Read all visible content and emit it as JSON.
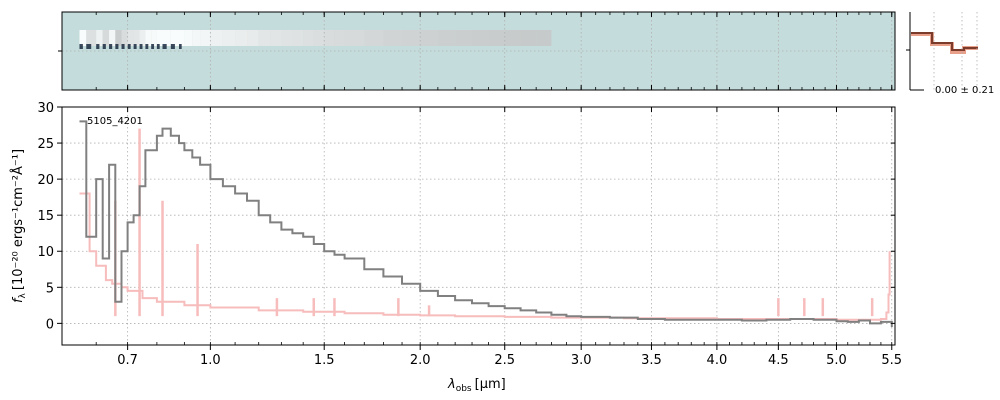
{
  "chart_data": {
    "type": "line",
    "title": "",
    "object_id": "5105_4201",
    "xlabel_main": "λ",
    "xlabel_sub": "obs",
    "xlabel_unit": "[μm]",
    "ylabel_main": "f",
    "ylabel_sub": "λ",
    "ylabel_unit": "[10⁻²⁰ ergs⁻¹cm⁻²Å⁻¹]",
    "x_scale": "sqrt",
    "xlim": [
      0.5,
      5.53
    ],
    "ylim": [
      -3,
      30
    ],
    "x_ticks": [
      0.7,
      1.0,
      1.5,
      2.0,
      2.5,
      3.0,
      3.5,
      4.0,
      4.5,
      5.0,
      5.5
    ],
    "x_tick_labels": [
      "0.7",
      "1.0",
      "1.5",
      "2.0",
      "2.5",
      "3.0",
      "3.5",
      "4.0",
      "4.5",
      "5.0",
      "5.5"
    ],
    "y_ticks": [
      0,
      5,
      10,
      15,
      20,
      25,
      30
    ],
    "y_tick_labels": [
      "0",
      "5",
      "10",
      "15",
      "20",
      "25",
      "30"
    ],
    "grid": true,
    "side_panel_label": "0.00 ± 0.21",
    "colors": {
      "data": "#808080",
      "model": "#f7bcbc",
      "zero_line": "#b0b0b0",
      "image_background": "#c4dcdb",
      "profile": "#7a3b2a",
      "profile_err": "#e8a08a"
    },
    "series": [
      {
        "role": "data",
        "x": [
          0.55,
          0.57,
          0.6,
          0.62,
          0.64,
          0.66,
          0.68,
          0.7,
          0.72,
          0.74,
          0.76,
          0.78,
          0.8,
          0.82,
          0.85,
          0.88,
          0.9,
          0.93,
          0.96,
          1.0,
          1.05,
          1.1,
          1.15,
          1.2,
          1.25,
          1.3,
          1.35,
          1.4,
          1.45,
          1.5,
          1.55,
          1.6,
          1.7,
          1.8,
          1.9,
          2.0,
          2.1,
          2.2,
          2.3,
          2.4,
          2.5,
          2.6,
          2.7,
          2.8,
          2.9,
          3.0,
          3.2,
          3.4,
          3.6,
          3.8,
          4.0,
          4.2,
          4.4,
          4.6,
          4.8,
          5.0,
          5.1,
          5.2,
          5.3,
          5.4,
          5.5
        ],
        "y": [
          28,
          12,
          20,
          9,
          22,
          3,
          10,
          14,
          15,
          19,
          24,
          24,
          26,
          27,
          26,
          25,
          24,
          23,
          22,
          20,
          19,
          18,
          17,
          15,
          14,
          13,
          12.5,
          12,
          11,
          10,
          9.5,
          9,
          7.5,
          6.5,
          5.5,
          4.5,
          3.8,
          3.2,
          2.8,
          2.4,
          2.1,
          1.8,
          1.5,
          1.2,
          1.0,
          0.9,
          0.8,
          0.6,
          0.5,
          0.5,
          0.5,
          0.4,
          0.5,
          0.6,
          0.5,
          0.3,
          0.2,
          0.4,
          0.0,
          0.2,
          -0.5
        ]
      },
      {
        "role": "model",
        "x": [
          0.55,
          0.58,
          0.6,
          0.63,
          0.65,
          0.68,
          0.7,
          0.75,
          0.8,
          0.9,
          1.0,
          1.2,
          1.4,
          1.6,
          1.8,
          2.0,
          2.2,
          2.5,
          2.8,
          3.0,
          3.3,
          3.6,
          4.0,
          4.3,
          4.6,
          5.0,
          5.2,
          5.4,
          5.45,
          5.47,
          5.48
        ],
        "y": [
          18,
          10,
          8,
          6,
          5.5,
          5,
          4.5,
          3.5,
          3.0,
          2.5,
          2.2,
          1.8,
          1.6,
          1.4,
          1.2,
          1.1,
          1.0,
          0.9,
          0.8,
          0.8,
          0.7,
          0.7,
          0.6,
          0.6,
          0.6,
          0.5,
          0.5,
          0.6,
          1.5,
          4.0,
          10.0
        ]
      },
      {
        "role": "model-emission-lines",
        "x": [
          0.66,
          0.74,
          0.82,
          0.95,
          1.28,
          1.45,
          1.55,
          1.88,
          2.05,
          4.5,
          4.72,
          4.88,
          5.32
        ],
        "y": [
          17,
          27,
          17,
          11,
          3.5,
          3.5,
          3.5,
          3.5,
          2.5,
          3.5,
          3.5,
          3.5,
          3.5
        ]
      }
    ]
  }
}
